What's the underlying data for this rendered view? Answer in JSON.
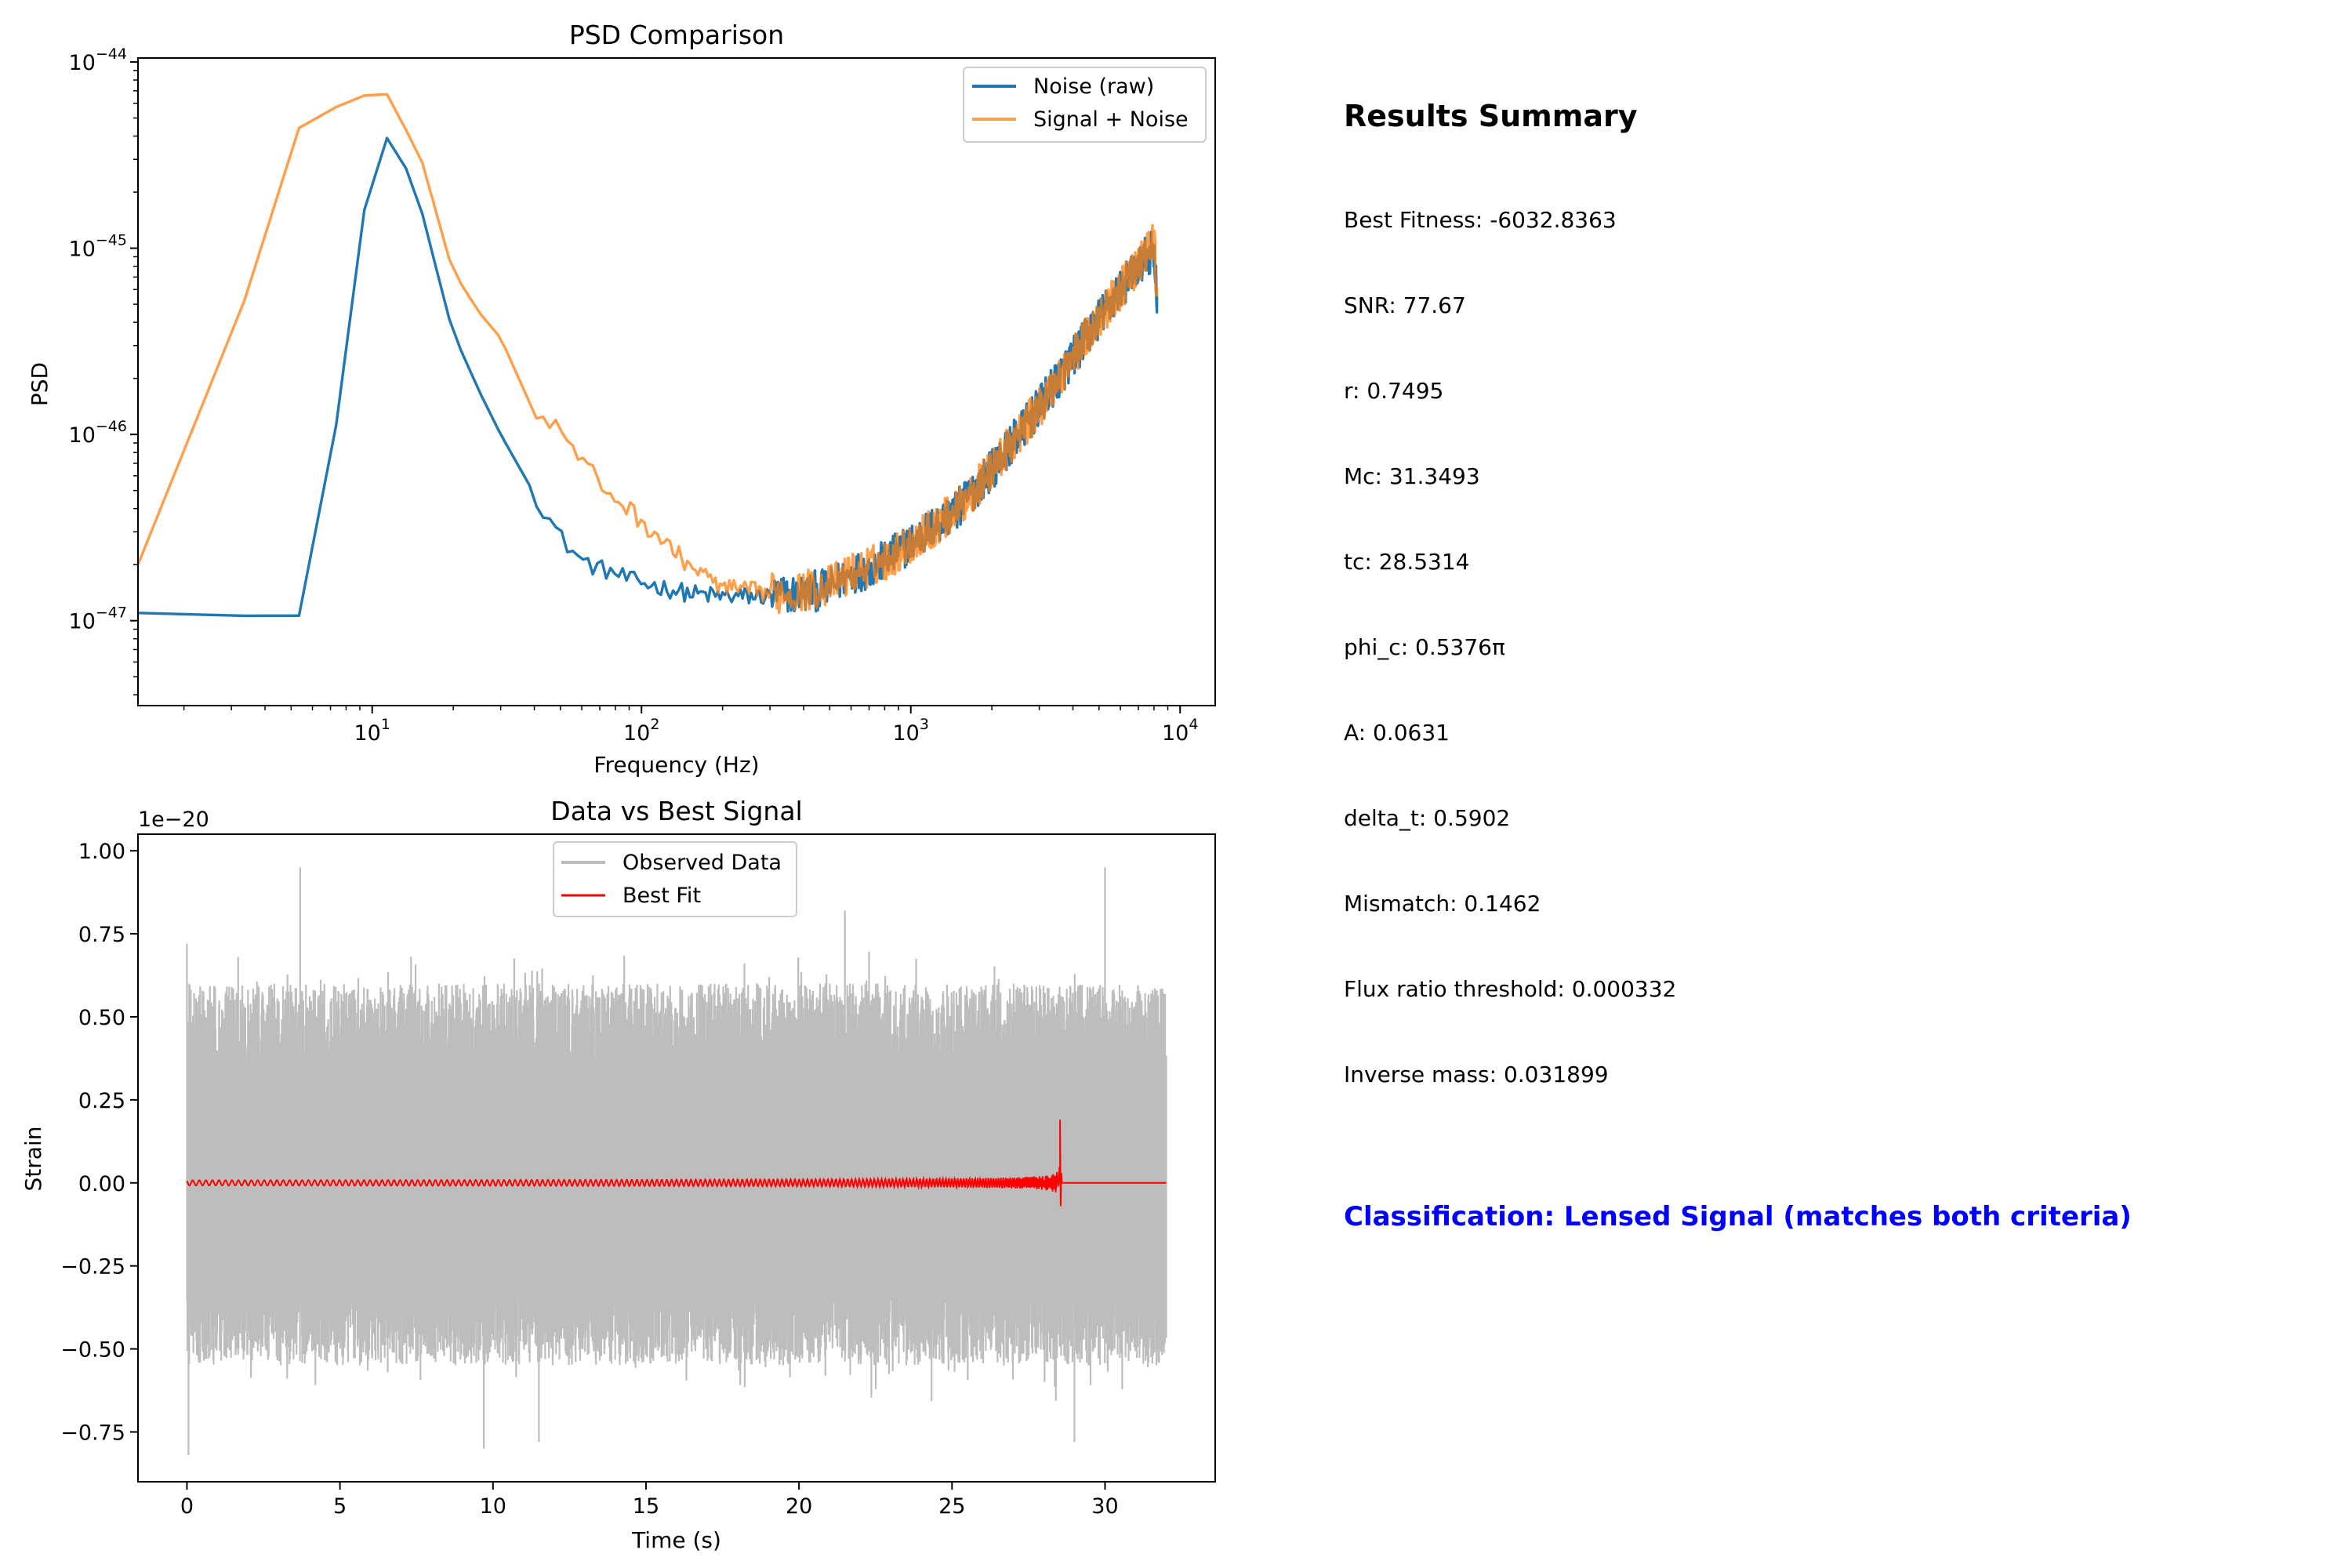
{
  "chart_data": [
    {
      "type": "line",
      "title": "PSD Comparison",
      "xlabel": "Frequency (Hz)",
      "ylabel": "PSD",
      "xscale": "log",
      "yscale": "log",
      "xlim": [
        1.35,
        13500
      ],
      "ylim": [
        3.5e-48,
        1.05e-44
      ],
      "xticks": [
        {
          "value": 10,
          "base": "10",
          "exp": "1"
        },
        {
          "value": 100,
          "base": "10",
          "exp": "2"
        },
        {
          "value": 1000,
          "base": "10",
          "exp": "3"
        },
        {
          "value": 10000,
          "base": "10",
          "exp": "4"
        }
      ],
      "yticks": [
        {
          "value": 1e-47,
          "base": "10",
          "exp": "−47"
        },
        {
          "value": 1e-46,
          "base": "10",
          "exp": "−46"
        },
        {
          "value": 1e-45,
          "base": "10",
          "exp": "−45"
        },
        {
          "value": 1e-44,
          "base": "10",
          "exp": "−44"
        }
      ],
      "legend": "top-right",
      "grid": false,
      "series": [
        {
          "name": "Noise (raw)",
          "color": "#1f77b4",
          "x": [
            1,
            2,
            4,
            6,
            8,
            10,
            12,
            14,
            16,
            18,
            20,
            25,
            30,
            40,
            50,
            60,
            70,
            80,
            90,
            100,
            150,
            200,
            250,
            300,
            400,
            500,
            600,
            700,
            800,
            1000,
            1500,
            2000,
            3000,
            4000,
            5000,
            6000,
            7000,
            8000,
            8200
          ],
          "y": [
            1.1e-47,
            1.1e-47,
            1.05e-47,
            1.07e-47,
            3e-46,
            3.3e-45,
            4.2e-45,
            2.2e-45,
            1.3e-45,
            6e-46,
            3.5e-46,
            1.7e-46,
            1e-46,
            4.8e-47,
            2.8e-47,
            2.1e-47,
            1.9e-47,
            1.8e-47,
            1.65e-47,
            1.6e-47,
            1.4e-47,
            1.35e-47,
            1.35e-47,
            1.35e-47,
            1.4e-47,
            1.5e-47,
            1.8e-47,
            1.9e-47,
            2.1e-47,
            2.6e-47,
            4e-47,
            6.5e-47,
            1.4e-46,
            2.6e-46,
            4.2e-46,
            6e-46,
            8e-46,
            1e-45,
            5.5e-46
          ]
        },
        {
          "name": "Signal + Noise",
          "color": "#ff7f0e",
          "x": [
            1,
            2,
            4,
            6,
            8,
            10,
            12,
            14,
            16,
            18,
            20,
            25,
            30,
            40,
            50,
            60,
            70,
            80,
            90,
            100,
            150,
            200,
            250,
            300,
            400,
            500,
            600,
            700,
            800,
            1000,
            1500,
            2000,
            3000,
            4000,
            5000,
            6000,
            7000,
            8000,
            8200
          ],
          "y": [
            2e-47,
            2e-47,
            1.6e-45,
            6.6e-45,
            5.4e-45,
            7.2e-45,
            6.5e-45,
            3.6e-45,
            2.6e-45,
            1.2e-45,
            7.5e-46,
            4.5e-46,
            3.3e-46,
            1.3e-46,
            1.05e-46,
            7.2e-47,
            5.5e-47,
            4.5e-47,
            4e-47,
            3.4e-47,
            2e-47,
            1.5e-47,
            1.45e-47,
            1.4e-47,
            1.45e-47,
            1.55e-47,
            1.8e-47,
            1.95e-47,
            2.1e-47,
            2.6e-47,
            4e-47,
            6.5e-47,
            1.4e-46,
            2.6e-46,
            4.2e-46,
            6e-46,
            8e-46,
            1.1e-45,
            5.5e-46
          ]
        }
      ]
    },
    {
      "type": "line",
      "title": "Data vs Best Signal",
      "xlabel": "Time (s)",
      "ylabel": "Strain",
      "offset_label": "1e−20",
      "xlim": [
        -1.6,
        33.6
      ],
      "ylim": [
        -0.9,
        1.05
      ],
      "xticks": [
        "0",
        "5",
        "10",
        "15",
        "20",
        "25",
        "30"
      ],
      "yticks": [
        "−0.75",
        "−0.50",
        "−0.25",
        "0.00",
        "0.25",
        "0.50",
        "0.75",
        "1.00"
      ],
      "legend": "top-center",
      "grid": false,
      "series": [
        {
          "name": "Observed Data",
          "color": "#bdbdbd",
          "description_range": {
            "t_start": 0,
            "t_end": 32,
            "typical_envelope": [
              -0.55,
              0.6
            ],
            "max": 0.95,
            "min": -0.82
          },
          "peaks": [
            {
              "t": 0.0,
              "v": 0.72
            },
            {
              "t": 0.05,
              "v": -0.82
            },
            {
              "t": 3.7,
              "v": 0.95
            },
            {
              "t": 9.7,
              "v": -0.8
            },
            {
              "t": 11.5,
              "v": -0.78
            },
            {
              "t": 21.5,
              "v": 0.82
            },
            {
              "t": 30.0,
              "v": 0.95
            },
            {
              "t": 29.0,
              "v": -0.78
            }
          ]
        },
        {
          "name": "Best Fit",
          "color": "#ff0000",
          "chirp": {
            "t_start": 0,
            "t_merge": 28.53,
            "t_end": 32,
            "base_amplitude": 0.008,
            "peak_max": 0.19,
            "peak_min": -0.07
          }
        }
      ]
    }
  ],
  "summary": {
    "title": "Results Summary",
    "items": [
      "Best Fitness: -6032.8363",
      "SNR: 77.67",
      "r: 0.7495",
      "Mc: 31.3493",
      "tc: 28.5314",
      "phi_c: 0.5376π",
      "A: 0.0631",
      "delta_t: 0.5902",
      "Mismatch: 0.1462",
      "Flux ratio threshold: 0.000332",
      "Inverse mass: 0.031899"
    ],
    "classification": "Classification: Lensed Signal (matches both criteria)",
    "classification_color": "#0000ff"
  }
}
